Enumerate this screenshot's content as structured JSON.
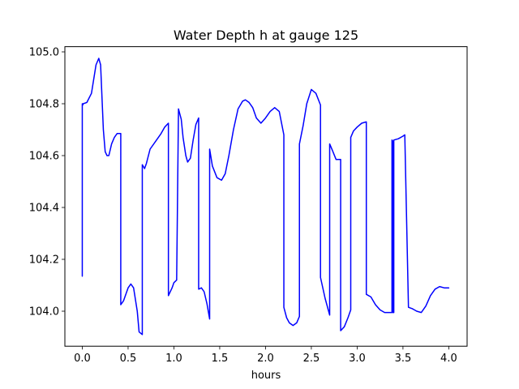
{
  "chart_data": {
    "type": "line",
    "title": "Water Depth h at gauge 125",
    "xlabel": "hours",
    "ylabel": "",
    "xlim": [
      -0.19,
      4.2
    ],
    "ylim": [
      103.865,
      105.02
    ],
    "xticks": [
      0.0,
      0.5,
      1.0,
      1.5,
      2.0,
      2.5,
      3.0,
      3.5,
      4.0
    ],
    "xtick_labels": [
      "0.0",
      "0.5",
      "1.0",
      "1.5",
      "2.0",
      "2.5",
      "3.0",
      "3.5",
      "4.0"
    ],
    "yticks": [
      104.0,
      104.2,
      104.4,
      104.6,
      104.8,
      105.0
    ],
    "ytick_labels": [
      "104.0",
      "104.2",
      "104.4",
      "104.6",
      "104.8",
      "105.0"
    ],
    "grid": false,
    "series": [
      {
        "color": "#0000ff",
        "x": [
          0.0,
          0.0,
          0.005,
          0.01,
          0.05,
          0.1,
          0.15,
          0.18,
          0.2,
          0.23,
          0.25,
          0.27,
          0.29,
          0.32,
          0.35,
          0.38,
          0.42,
          0.42,
          0.45,
          0.5,
          0.53,
          0.56,
          0.6,
          0.62,
          0.655,
          0.655,
          0.68,
          0.7,
          0.74,
          0.8,
          0.86,
          0.9,
          0.94,
          0.94,
          0.98,
          1.0,
          1.03,
          1.03,
          1.05,
          1.08,
          1.1,
          1.13,
          1.15,
          1.18,
          1.21,
          1.24,
          1.27,
          1.27,
          1.3,
          1.33,
          1.36,
          1.39,
          1.39,
          1.42,
          1.47,
          1.52,
          1.56,
          1.6,
          1.65,
          1.7,
          1.75,
          1.78,
          1.82,
          1.86,
          1.9,
          1.95,
          2.0,
          2.05,
          2.1,
          2.15,
          2.2,
          2.2,
          2.23,
          2.26,
          2.28,
          2.3,
          2.34,
          2.37,
          2.37,
          2.41,
          2.45,
          2.5,
          2.55,
          2.6,
          2.6,
          2.65,
          2.7,
          2.7,
          2.73,
          2.77,
          2.8,
          2.82,
          2.82,
          2.86,
          2.9,
          2.93,
          2.93,
          2.96,
          3.0,
          3.05,
          3.1,
          3.1,
          3.15,
          3.2,
          3.25,
          3.3,
          3.35,
          3.38,
          3.38,
          3.39,
          3.39,
          3.4,
          3.4,
          3.45,
          3.5,
          3.52,
          3.52,
          3.56,
          3.6,
          3.65,
          3.7,
          3.75,
          3.8,
          3.85,
          3.9,
          3.95,
          4.0
        ],
        "y": [
          104.135,
          104.8,
          104.795,
          104.8,
          104.805,
          104.84,
          104.95,
          104.975,
          104.95,
          104.7,
          104.615,
          104.6,
          104.6,
          104.645,
          104.67,
          104.685,
          104.685,
          104.025,
          104.04,
          104.09,
          104.105,
          104.09,
          104.0,
          103.92,
          103.91,
          104.565,
          104.55,
          104.57,
          104.625,
          104.655,
          104.685,
          104.71,
          104.725,
          104.06,
          104.09,
          104.11,
          104.12,
          104.12,
          104.78,
          104.74,
          104.67,
          104.6,
          104.575,
          104.59,
          104.66,
          104.72,
          104.745,
          104.085,
          104.09,
          104.075,
          104.03,
          103.97,
          104.625,
          104.56,
          104.515,
          104.505,
          104.53,
          104.6,
          104.7,
          104.78,
          104.81,
          104.815,
          104.805,
          104.785,
          104.745,
          104.725,
          104.745,
          104.77,
          104.785,
          104.77,
          104.68,
          104.015,
          103.975,
          103.955,
          103.95,
          103.945,
          103.955,
          103.98,
          104.645,
          104.715,
          104.8,
          104.855,
          104.84,
          104.795,
          104.13,
          104.05,
          103.985,
          104.645,
          104.62,
          104.585,
          104.585,
          104.585,
          103.925,
          103.94,
          103.975,
          104.005,
          104.67,
          104.695,
          104.71,
          104.725,
          104.73,
          104.065,
          104.055,
          104.025,
          104.005,
          103.995,
          103.995,
          103.995,
          104.66,
          104.655,
          103.995,
          103.995,
          104.66,
          104.665,
          104.675,
          104.68,
          104.68,
          104.015,
          104.01,
          104.0,
          103.995,
          104.02,
          104.06,
          104.085,
          104.095,
          104.09,
          104.09
        ]
      }
    ]
  }
}
